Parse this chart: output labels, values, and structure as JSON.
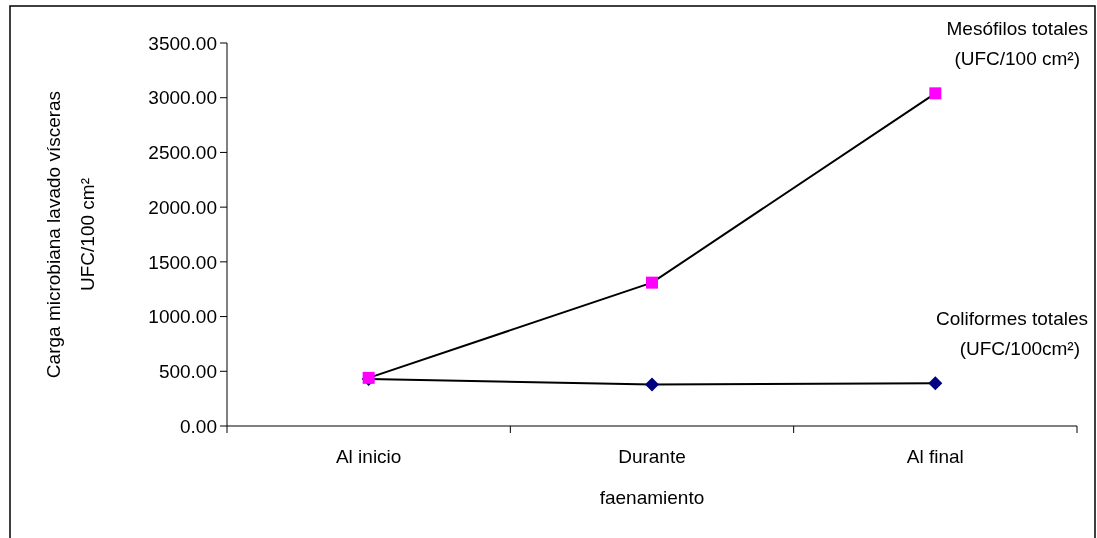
{
  "chart_data": {
    "type": "line",
    "xlabel": "faenamiento",
    "ylabel": "Carga microbiana lavado vísceras\nUFC/100 cm²",
    "categories": [
      "Al inicio",
      "Durante",
      "Al final"
    ],
    "series": [
      {
        "name": "Mesófilos totales\n(UFC/100 cm²)",
        "color": "#ff00ff",
        "marker": "square",
        "values": [
          440,
          1310,
          3040
        ]
      },
      {
        "name": "Coliformes totales\n(UFC/100cm²)",
        "color": "#000080",
        "marker": "diamond",
        "values": [
          430,
          380,
          390
        ]
      }
    ],
    "ylim": [
      0,
      3500
    ],
    "yticks": [
      {
        "value": 0,
        "label": "0.00"
      },
      {
        "value": 500,
        "label": "500.00"
      },
      {
        "value": 1000,
        "label": "1000.00"
      },
      {
        "value": 1500,
        "label": "1500.00"
      },
      {
        "value": 2000,
        "label": "2000.00"
      },
      {
        "value": 2500,
        "label": "2500.00"
      },
      {
        "value": 3000,
        "label": "3000.00"
      },
      {
        "value": 3500,
        "label": "3500.00"
      }
    ],
    "line_style": "solid"
  }
}
